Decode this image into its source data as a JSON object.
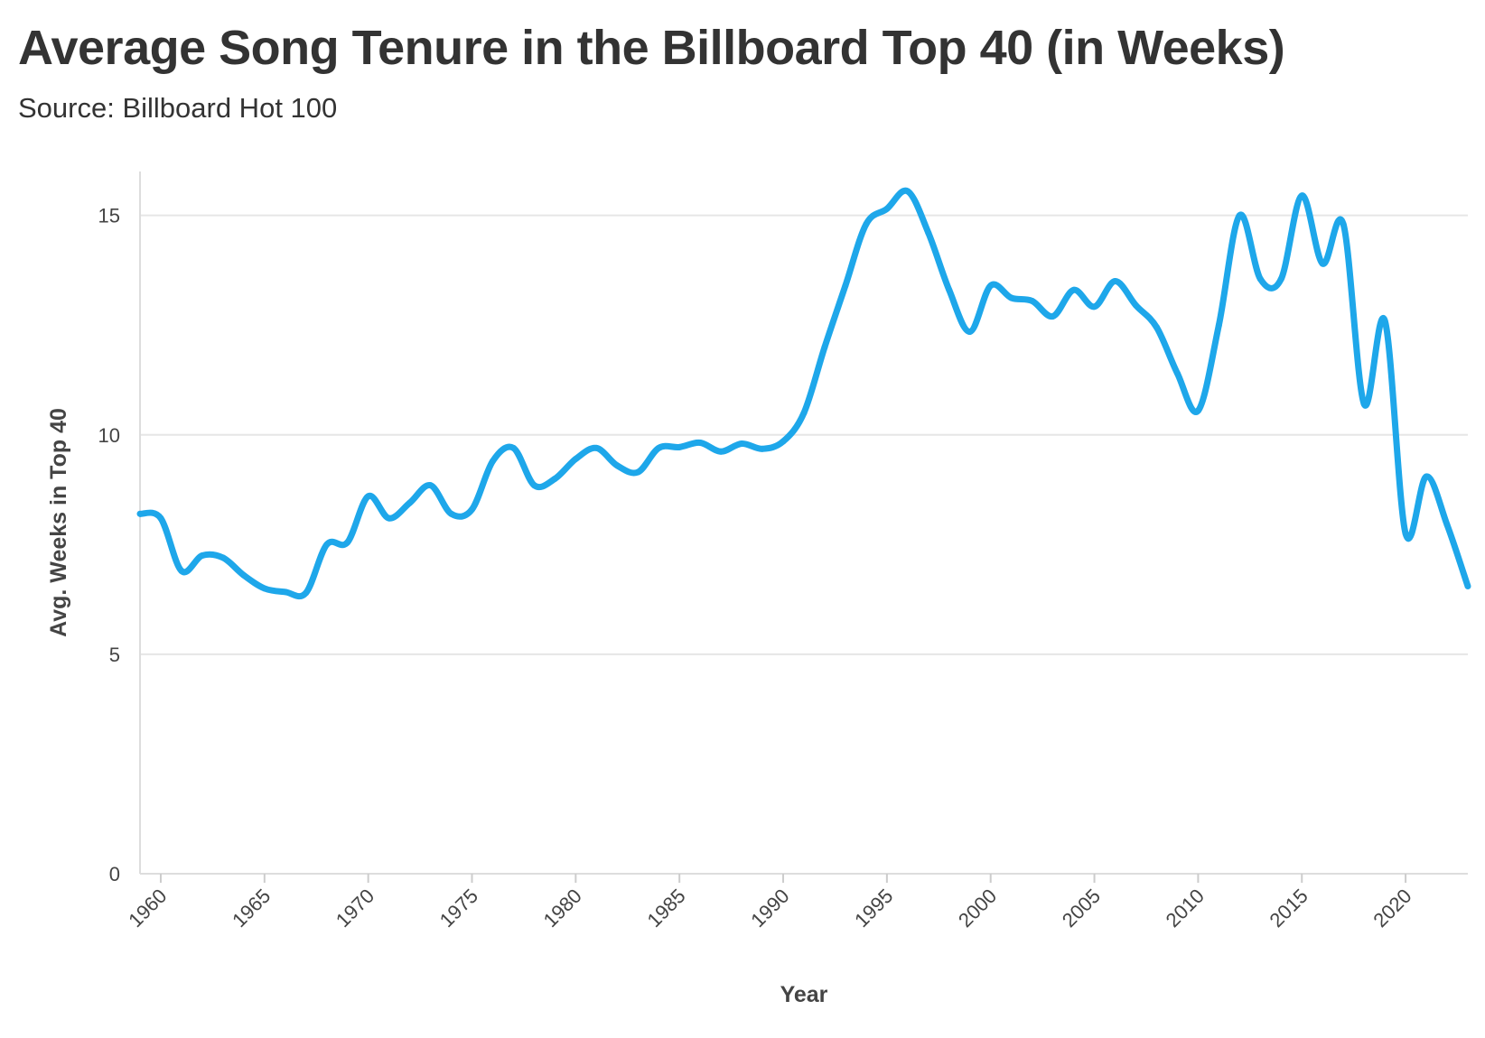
{
  "chart_data": {
    "type": "line",
    "title": "Average Song Tenure in the Billboard Top 40 (in Weeks)",
    "subtitle": "Source: Billboard Hot 100",
    "xlabel": "Year",
    "ylabel": "Avg. Weeks in Top 40",
    "xlim": [
      1959,
      2023
    ],
    "ylim": [
      0,
      16
    ],
    "xticks": [
      1960,
      1965,
      1970,
      1975,
      1980,
      1985,
      1990,
      1995,
      2000,
      2005,
      2010,
      2015,
      2020
    ],
    "yticks": [
      0,
      5,
      10,
      15
    ],
    "grid": "horizontal",
    "line_color": "#1ea7ea",
    "series": [
      {
        "x": [
          1959,
          1960,
          1961,
          1962,
          1963,
          1964,
          1965,
          1966,
          1967,
          1968,
          1969,
          1970,
          1971,
          1972,
          1973,
          1974,
          1975,
          1976,
          1977,
          1978,
          1979,
          1980,
          1981,
          1982,
          1983,
          1984,
          1985,
          1986,
          1987,
          1988,
          1989,
          1990,
          1991,
          1992,
          1993,
          1994,
          1995,
          1996,
          1997,
          1998,
          1999,
          2000,
          2001,
          2002,
          2003,
          2004,
          2005,
          2006,
          2007,
          2008,
          2009,
          2010,
          2011,
          2012,
          2013,
          2014,
          2015,
          2016,
          2017,
          2018,
          2019,
          2020,
          2021,
          2022,
          2023
        ],
        "values": [
          8.2,
          8.1,
          6.9,
          7.25,
          7.2,
          6.8,
          6.5,
          6.42,
          6.4,
          7.5,
          7.55,
          8.6,
          8.1,
          8.45,
          8.85,
          8.2,
          8.3,
          9.4,
          9.7,
          8.85,
          9.0,
          9.45,
          9.7,
          9.3,
          9.15,
          9.7,
          9.72,
          9.82,
          9.62,
          9.8,
          9.68,
          9.85,
          10.5,
          12.0,
          13.4,
          14.8,
          15.15,
          15.55,
          14.6,
          13.3,
          12.35,
          13.4,
          13.12,
          13.05,
          12.7,
          13.3,
          12.92,
          13.5,
          12.95,
          12.45,
          11.4,
          10.55,
          12.5,
          15.0,
          13.55,
          13.55,
          15.45,
          13.9,
          14.8,
          10.7,
          12.6,
          7.75,
          9.05,
          7.95,
          6.55
        ]
      }
    ]
  }
}
